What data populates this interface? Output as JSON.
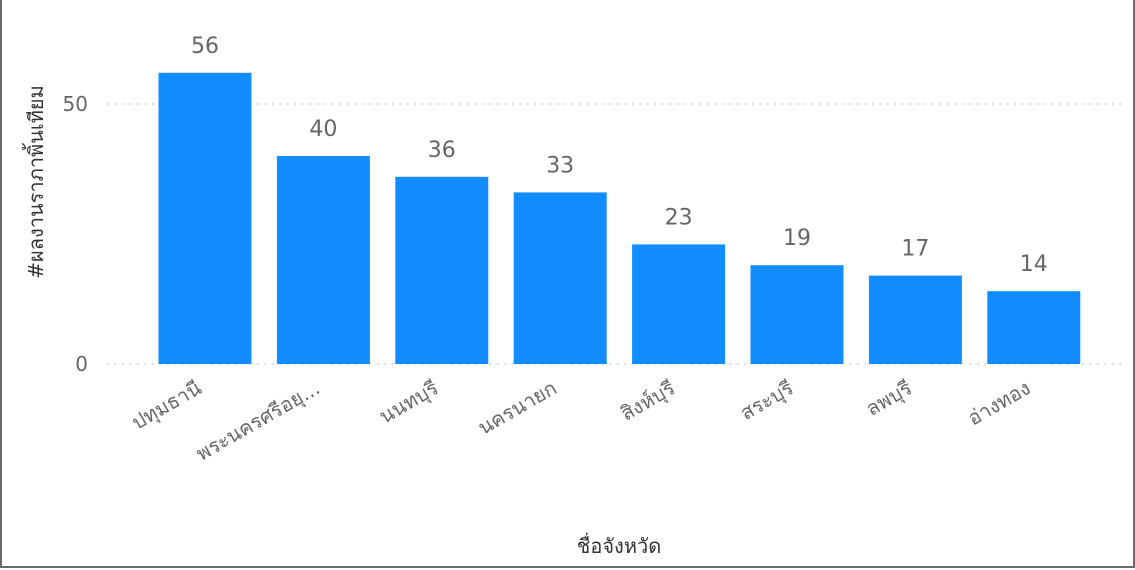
{
  "chart_data": {
    "type": "bar",
    "title": "",
    "xlabel": "ชื่อจังหวัด",
    "ylabel": "#ผลงานราภาพิ้นเทียม",
    "categories": [
      "ปทุมธานี",
      "พระนครศรีอยุ...",
      "นนทบุรี",
      "นครนายก",
      "สิงห์บุรี",
      "สระบุรี",
      "ลพบุรี",
      "อ่างทอง"
    ],
    "values": [
      56,
      40,
      36,
      33,
      23,
      19,
      17,
      14
    ],
    "data_labels": [
      "56",
      "40",
      "36",
      "33",
      "23",
      "19",
      "17",
      "14"
    ],
    "yticks": [
      0,
      50
    ],
    "ytick_labels": [
      "0",
      "50"
    ],
    "ylim": [
      0,
      60
    ],
    "grid": true,
    "bar_color": "#118DFF",
    "legend": "none"
  }
}
